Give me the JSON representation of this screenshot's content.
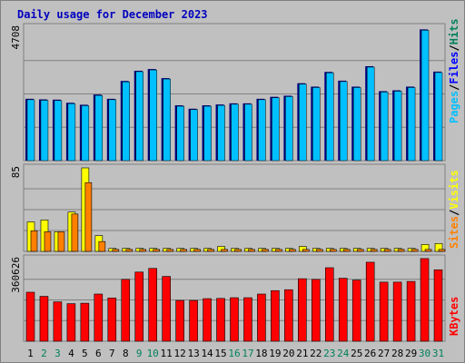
{
  "chart_data": [
    {
      "type": "bar",
      "title": "Daily usage for December 2023",
      "categories": [
        "1",
        "2",
        "3",
        "4",
        "5",
        "6",
        "7",
        "8",
        "9",
        "10",
        "11",
        "12",
        "13",
        "14",
        "15",
        "16",
        "17",
        "18",
        "19",
        "20",
        "21",
        "22",
        "23",
        "24",
        "25",
        "26",
        "27",
        "28",
        "29",
        "30",
        "31"
      ],
      "weekend_days": [
        "2",
        "3",
        "9",
        "10",
        "16",
        "17",
        "23",
        "24",
        "30",
        "31"
      ],
      "y_tick_label": "4708",
      "ylim": [
        0,
        4708
      ],
      "series": [
        {
          "name": "Hits",
          "color": "#00805c",
          "values": [
            2170,
            2150,
            2150,
            2040,
            1960,
            2340,
            2180,
            2820,
            3190,
            3250,
            2930,
            1960,
            1840,
            1950,
            1980,
            2030,
            2030,
            2180,
            2250,
            2290,
            2740,
            2620,
            3140,
            2830,
            2620,
            3360,
            2460,
            2490,
            2620,
            4708,
            3160
          ]
        },
        {
          "name": "Files",
          "color": "#0000ff",
          "values": [
            2150,
            2130,
            2120,
            2010,
            1940,
            2300,
            2150,
            2780,
            3140,
            3200,
            2880,
            1920,
            1800,
            1920,
            1950,
            1990,
            1990,
            2150,
            2220,
            2260,
            2700,
            2580,
            3100,
            2790,
            2580,
            3300,
            2420,
            2450,
            2580,
            4600,
            3110
          ]
        },
        {
          "name": "Pages",
          "color": "#00c0ff",
          "values": [
            2150,
            2130,
            2120,
            2010,
            1940,
            2300,
            2150,
            2780,
            3140,
            3200,
            2880,
            1920,
            1800,
            1920,
            1950,
            1990,
            1990,
            2150,
            2220,
            2260,
            2700,
            2580,
            3100,
            2790,
            2580,
            3300,
            2420,
            2450,
            2580,
            4600,
            3110
          ]
        }
      ]
    },
    {
      "type": "bar",
      "y_tick_label": "85",
      "ylim": [
        0,
        85
      ],
      "series": [
        {
          "name": "Visits",
          "color": "#ffff00",
          "values": [
            30,
            32,
            20,
            40,
            85,
            16,
            3,
            3,
            3,
            3,
            3,
            3,
            3,
            3,
            5,
            3,
            3,
            3,
            3,
            3,
            5,
            3,
            3,
            3,
            3,
            3,
            3,
            3,
            3,
            7,
            8
          ]
        },
        {
          "name": "Sites",
          "color": "#ff8000",
          "values": [
            21,
            20,
            20,
            38,
            70,
            10,
            2,
            2,
            2,
            2,
            2,
            2,
            2,
            2,
            2,
            2,
            2,
            2,
            2,
            2,
            2,
            2,
            2,
            2,
            2,
            2,
            2,
            2,
            2,
            2,
            2
          ]
        }
      ]
    },
    {
      "type": "bar",
      "y_tick_label": "360626",
      "ylim": [
        0,
        360626
      ],
      "series": [
        {
          "name": "KBytes",
          "color": "#ff0000",
          "values": [
            214000,
            196000,
            172000,
            164000,
            166000,
            206000,
            189000,
            270000,
            302000,
            318000,
            283000,
            178000,
            178000,
            186000,
            187000,
            190000,
            190000,
            206000,
            221000,
            225000,
            273000,
            270000,
            321000,
            275000,
            267000,
            345000,
            258000,
            258000,
            261000,
            361000,
            312000
          ]
        }
      ]
    }
  ]
}
